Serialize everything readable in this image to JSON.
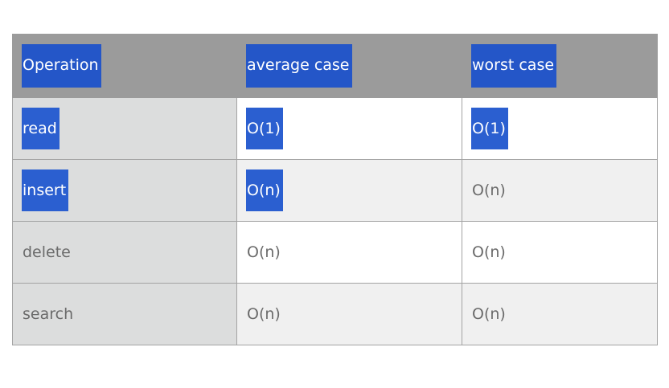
{
  "table": {
    "headers": [
      "Operation",
      "average case",
      "worst case"
    ],
    "rows": [
      [
        "read",
        "O(1)",
        "O(1)"
      ],
      [
        "insert",
        "O(n)",
        "O(n)"
      ],
      [
        "delete",
        "O(n)",
        "O(n)"
      ],
      [
        "search",
        "O(n)",
        "O(n)"
      ]
    ],
    "highlight_color": "#2b5fd0",
    "header_background": "#9b9b9b"
  }
}
